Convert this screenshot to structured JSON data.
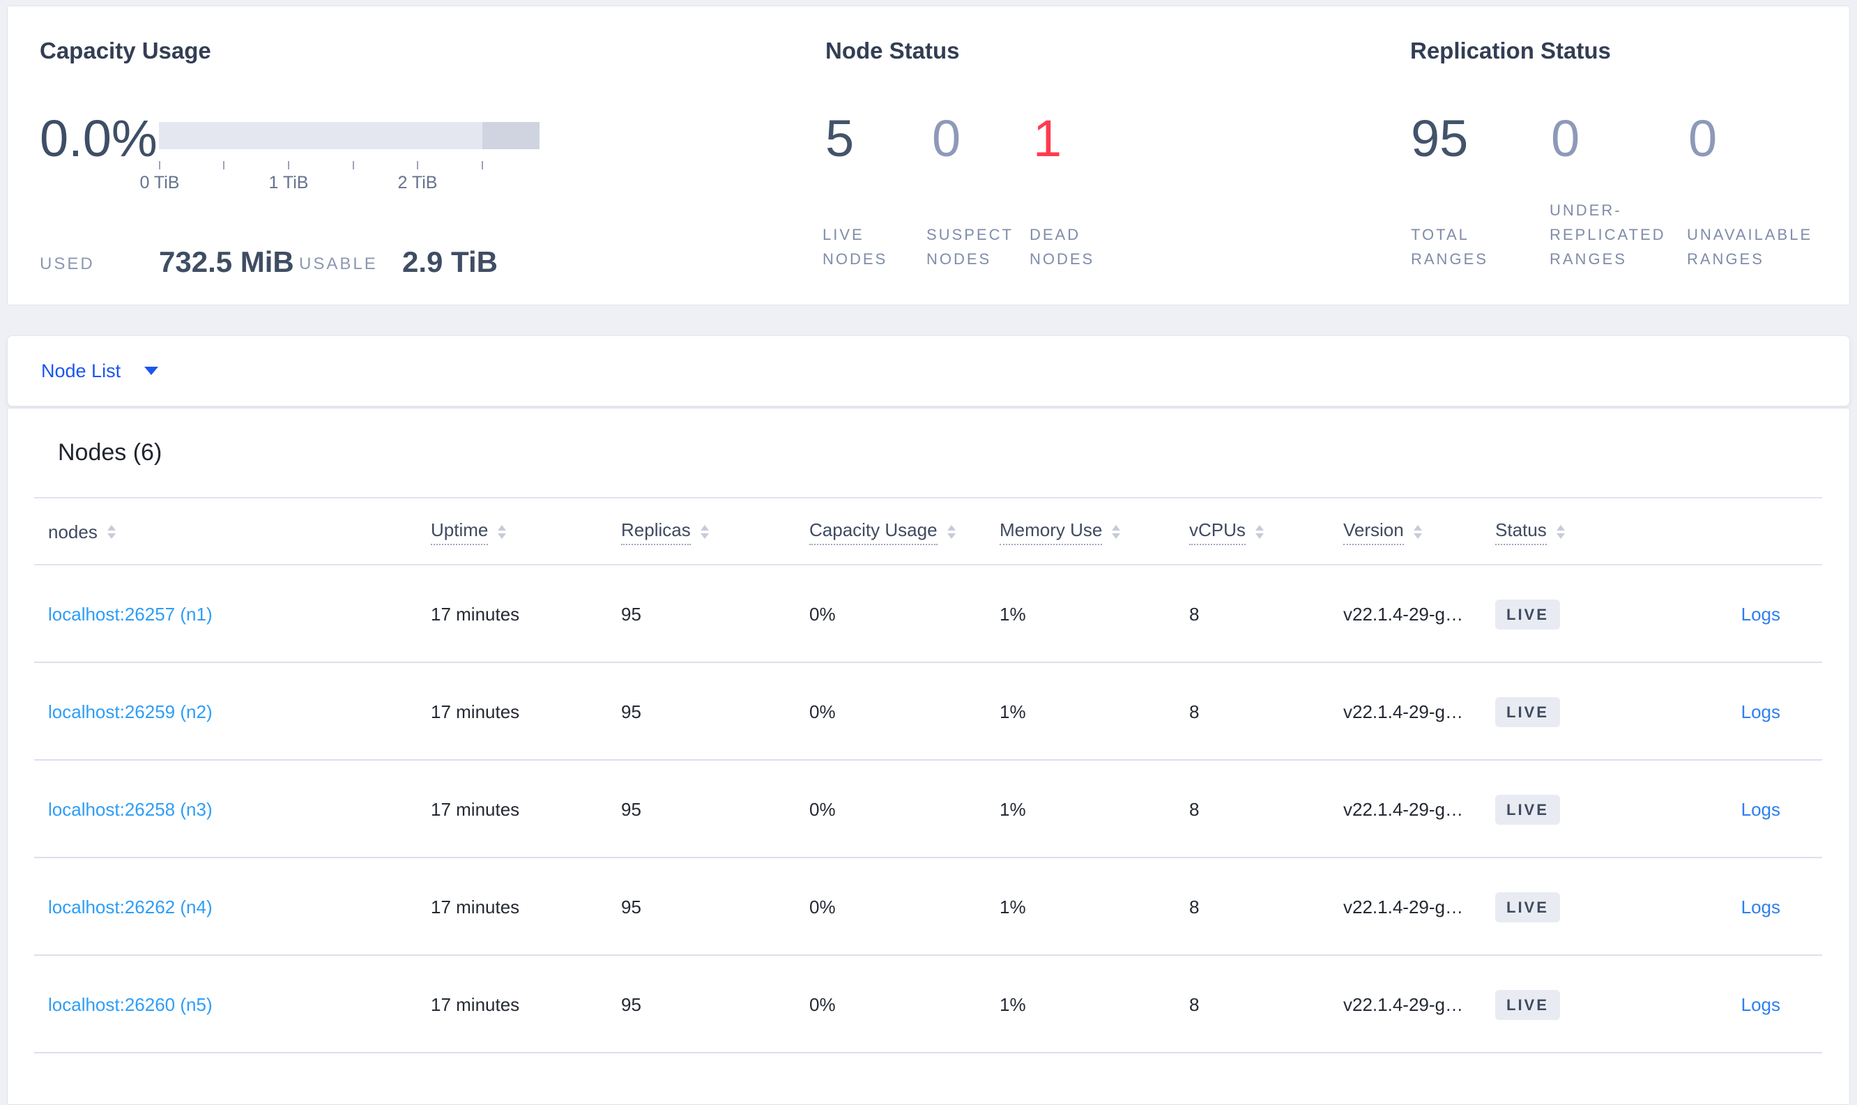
{
  "summary": {
    "capacity": {
      "title": "Capacity Usage",
      "percent": "0.0%",
      "axis_ticks": [
        "0 TiB",
        "1 TiB",
        "2 TiB"
      ],
      "used_label": "USED",
      "used_value": "732.5 MiB",
      "usable_label": "USABLE",
      "usable_value": "2.9 TiB"
    },
    "node_status": {
      "title": "Node Status",
      "stats": [
        {
          "value": "5",
          "tone": "dark",
          "label_lines": [
            "LIVE",
            "NODES"
          ]
        },
        {
          "value": "0",
          "tone": "light",
          "label_lines": [
            "SUSPECT",
            "NODES"
          ]
        },
        {
          "value": "1",
          "tone": "danger",
          "label_lines": [
            "DEAD",
            "NODES"
          ]
        }
      ]
    },
    "replication_status": {
      "title": "Replication Status",
      "stats": [
        {
          "value": "95",
          "tone": "dark",
          "label_lines": [
            "TOTAL",
            "RANGES"
          ]
        },
        {
          "value": "0",
          "tone": "light",
          "label_lines": [
            "UNDER-",
            "REPLICATED",
            "RANGES"
          ]
        },
        {
          "value": "0",
          "tone": "light",
          "label_lines": [
            "UNAVAILABLE",
            "RANGES"
          ]
        }
      ]
    }
  },
  "node_list_dropdown": {
    "label": "Node List"
  },
  "nodes_table": {
    "heading": "Nodes (6)",
    "columns": [
      {
        "label": "nodes",
        "sortable": true,
        "underlined": false
      },
      {
        "label": "Uptime",
        "sortable": true,
        "underlined": true
      },
      {
        "label": "Replicas",
        "sortable": true,
        "underlined": true
      },
      {
        "label": "Capacity Usage",
        "sortable": true,
        "underlined": true
      },
      {
        "label": "Memory Use",
        "sortable": true,
        "underlined": true
      },
      {
        "label": "vCPUs",
        "sortable": true,
        "underlined": true
      },
      {
        "label": "Version",
        "sortable": true,
        "underlined": true
      },
      {
        "label": "Status",
        "sortable": true,
        "underlined": true
      }
    ],
    "rows": [
      {
        "node": "localhost:26257 (n1)",
        "uptime": "17 minutes",
        "replicas": "95",
        "capacity_usage": "0%",
        "memory_use": "1%",
        "vcpus": "8",
        "version": "v22.1.4-29-g…",
        "status": "LIVE",
        "logs": "Logs"
      },
      {
        "node": "localhost:26259 (n2)",
        "uptime": "17 minutes",
        "replicas": "95",
        "capacity_usage": "0%",
        "memory_use": "1%",
        "vcpus": "8",
        "version": "v22.1.4-29-g…",
        "status": "LIVE",
        "logs": "Logs"
      },
      {
        "node": "localhost:26258 (n3)",
        "uptime": "17 minutes",
        "replicas": "95",
        "capacity_usage": "0%",
        "memory_use": "1%",
        "vcpus": "8",
        "version": "v22.1.4-29-g…",
        "status": "LIVE",
        "logs": "Logs"
      },
      {
        "node": "localhost:26262 (n4)",
        "uptime": "17 minutes",
        "replicas": "95",
        "capacity_usage": "0%",
        "memory_use": "1%",
        "vcpus": "8",
        "version": "v22.1.4-29-g…",
        "status": "LIVE",
        "logs": "Logs"
      },
      {
        "node": "localhost:26260 (n5)",
        "uptime": "17 minutes",
        "replicas": "95",
        "capacity_usage": "0%",
        "memory_use": "1%",
        "vcpus": "8",
        "version": "v22.1.4-29-g…",
        "status": "LIVE",
        "logs": "Logs"
      }
    ]
  },
  "colors": {
    "accent_blue": "#1b57ee",
    "node_link_blue": "#2e9df6",
    "logs_link_blue": "#2e7ff0",
    "danger_red": "#ff3b4e",
    "stat_dark": "#43536b",
    "stat_light": "#8d99b8",
    "badge_bg": "#e8ebf2",
    "bar_light": "#e4e7ef",
    "bar_dark": "#cfd4e0",
    "page_bg": "#eef0f5"
  }
}
